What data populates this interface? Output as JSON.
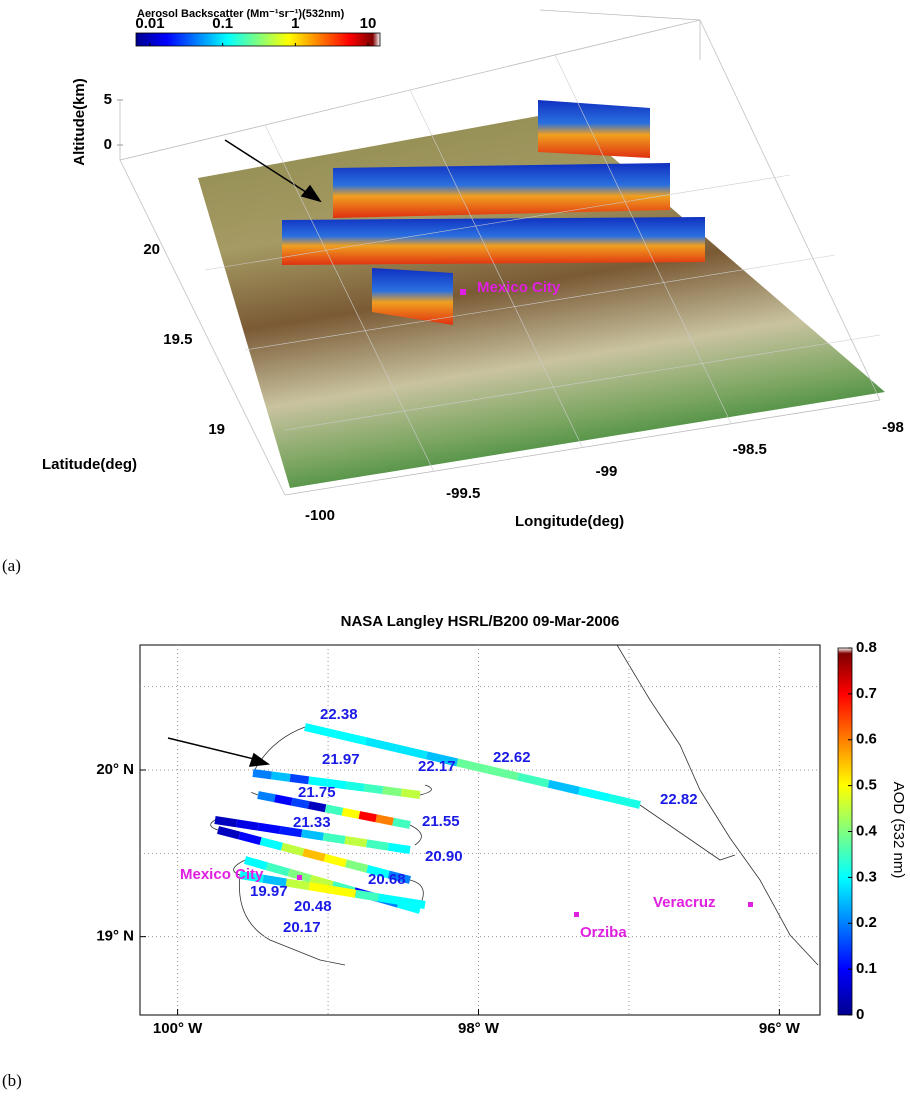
{
  "chart_data": [
    {
      "type": "surface3d",
      "colorbar": {
        "title": "Aerosol Backscatter (Mm⁻¹sr⁻¹)(532nm)",
        "clim": [
          0.01,
          10
        ],
        "ticks": [
          0.01,
          0.1,
          1,
          10
        ],
        "log": true
      },
      "zlabel": "Altitude(km)",
      "zlim": [
        0,
        5
      ],
      "zticks": [
        0,
        5
      ],
      "ylabel": "Latitude(deg)",
      "ylim": [
        19,
        20
      ],
      "yticks": [
        19,
        19.5,
        20
      ],
      "xlabel": "Longitude(deg)",
      "xlim": [
        -100,
        -98
      ],
      "xticks": [
        -100,
        -99.5,
        -99,
        -98.5,
        -98
      ],
      "annotations": [
        "Mexico City"
      ],
      "panel_label": "(a)"
    },
    {
      "type": "map",
      "title": "NASA Langley HSRL/B200 09-Mar-2006",
      "xlim": [
        -100.25,
        -95.73
      ],
      "ylim": [
        18.53,
        20.75
      ],
      "xticks": [
        {
          "value": -100,
          "label": "100° W"
        },
        {
          "value": -98,
          "label": "98° W"
        },
        {
          "value": -96,
          "label": "96° W"
        }
      ],
      "yticks": [
        {
          "value": 19,
          "label": "19° N"
        },
        {
          "value": 20,
          "label": "20° N"
        }
      ],
      "xgrid": [
        -100,
        -99,
        -98,
        -97,
        -96
      ],
      "ygrid": [
        19,
        19.5,
        20,
        20.5
      ],
      "grid": true,
      "colorbar": {
        "label": "AOD (532 nm)",
        "clim": [
          0,
          0.8
        ],
        "ticks": [
          0,
          0.1,
          0.2,
          0.3,
          0.4,
          0.5,
          0.6,
          0.7,
          0.8
        ]
      },
      "track_legs": [
        {
          "aod": [
            0.3,
            0.3,
            0.28,
            0.28,
            0.25,
            0.38,
            0.38,
            0.35,
            0.25,
            0.3,
            0.32
          ]
        },
        {
          "aod": [
            0.2,
            0.25,
            0.15,
            0.3,
            0.3,
            0.32,
            0.35,
            0.4,
            0.45
          ]
        },
        {
          "aod": [
            0.2,
            0.1,
            0.15,
            0.05,
            0.35,
            0.5,
            0.7,
            0.6,
            0.35
          ]
        },
        {
          "aod": [
            0.05,
            0.08,
            0.1,
            0.12,
            0.25,
            0.35,
            0.45,
            0.35,
            0.3
          ]
        },
        {
          "aod": [
            0.05,
            0.1,
            0.3,
            0.45,
            0.55,
            0.5,
            0.4,
            0.3,
            0.2
          ]
        },
        {
          "aod": [
            0.3,
            0.35,
            0.4,
            0.45,
            0.35,
            0.1,
            0.2,
            0.3
          ]
        },
        {
          "aod": [
            0.3,
            0.25,
            0.45,
            0.5,
            0.5,
            0.35,
            0.3,
            0.3
          ]
        }
      ],
      "time_labels": [
        "22.38",
        "21.97",
        "22.17",
        "22.62",
        "21.75",
        "21.55",
        "21.33",
        "20.90",
        "19.97",
        "20.68",
        "20.48",
        "20.17",
        "22.82"
      ],
      "cities": [
        "Mexico City",
        "Orziba",
        "Veracruz"
      ],
      "panel_label": "(b)"
    }
  ]
}
